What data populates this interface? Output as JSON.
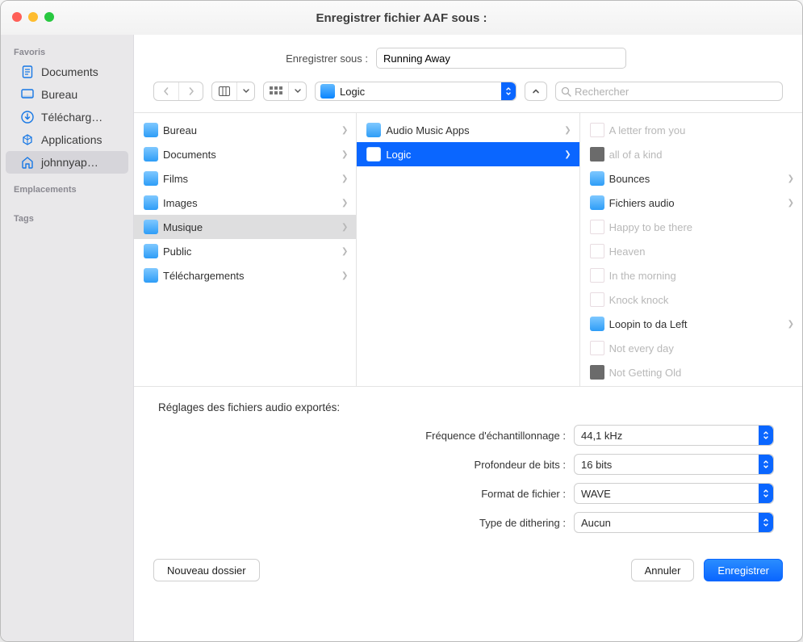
{
  "colors": {
    "accent": "#0a66ff",
    "traffic_red": "#ff5f57",
    "traffic_yellow": "#febc2e",
    "traffic_green": "#28c840",
    "sidebar_bg": "#e9e8ea",
    "border": "#cfcfcf"
  },
  "window": {
    "title": "Enregistrer fichier AAF sous :"
  },
  "saveas": {
    "label": "Enregistrer sous :",
    "value": "Running Away"
  },
  "toolbar": {
    "path_label": "Logic",
    "search_placeholder": "Rechercher"
  },
  "sidebar": {
    "sections": {
      "favoris": "Favoris",
      "emplacements": "Emplacements",
      "tags": "Tags"
    },
    "items": [
      {
        "label": "Documents",
        "icon": "document-icon"
      },
      {
        "label": "Bureau",
        "icon": "desktop-icon"
      },
      {
        "label": "Télécharg…",
        "icon": "download-icon"
      },
      {
        "label": "Applications",
        "icon": "applications-icon"
      },
      {
        "label": "johnnyap…",
        "icon": "home-icon",
        "selected": true
      }
    ]
  },
  "columns": [
    {
      "items": [
        {
          "label": "Bureau",
          "kind": "folder",
          "nav": true
        },
        {
          "label": "Documents",
          "kind": "folder",
          "nav": true
        },
        {
          "label": "Films",
          "kind": "folder",
          "nav": true
        },
        {
          "label": "Images",
          "kind": "folder",
          "nav": true
        },
        {
          "label": "Musique",
          "kind": "folder",
          "nav": true,
          "selected": "grey"
        },
        {
          "label": "Public",
          "kind": "folder",
          "nav": true
        },
        {
          "label": "Téléchargements",
          "kind": "folder",
          "nav": true
        }
      ]
    },
    {
      "items": [
        {
          "label": "Audio Music Apps",
          "kind": "folder",
          "nav": true
        },
        {
          "label": "Logic",
          "kind": "folder-open",
          "nav": true,
          "selected": "blue"
        }
      ]
    },
    {
      "items": [
        {
          "label": "A letter from you",
          "kind": "file",
          "dim": true
        },
        {
          "label": "all of a kind",
          "kind": "logic",
          "dim": true
        },
        {
          "label": "Bounces",
          "kind": "folder",
          "nav": true
        },
        {
          "label": "Fichiers audio",
          "kind": "folder",
          "nav": true
        },
        {
          "label": "Happy to be there",
          "kind": "file",
          "dim": true
        },
        {
          "label": "Heaven",
          "kind": "file",
          "dim": true
        },
        {
          "label": "In the morning",
          "kind": "file",
          "dim": true
        },
        {
          "label": "Knock knock",
          "kind": "file",
          "dim": true
        },
        {
          "label": "Loopin to da Left",
          "kind": "folder",
          "nav": true
        },
        {
          "label": "Not every day",
          "kind": "file",
          "dim": true
        },
        {
          "label": "Not Getting Old",
          "kind": "logic",
          "dim": true
        }
      ]
    }
  ],
  "settings": {
    "title": "Réglages des fichiers audio exportés:",
    "rows": [
      {
        "label": "Fréquence d'échantillonnage :",
        "value": "44,1 kHz"
      },
      {
        "label": "Profondeur de bits :",
        "value": "16 bits"
      },
      {
        "label": "Format de fichier :",
        "value": "WAVE"
      },
      {
        "label": "Type de dithering :",
        "value": "Aucun"
      }
    ]
  },
  "footer": {
    "new_folder": "Nouveau dossier",
    "cancel": "Annuler",
    "save": "Enregistrer"
  }
}
